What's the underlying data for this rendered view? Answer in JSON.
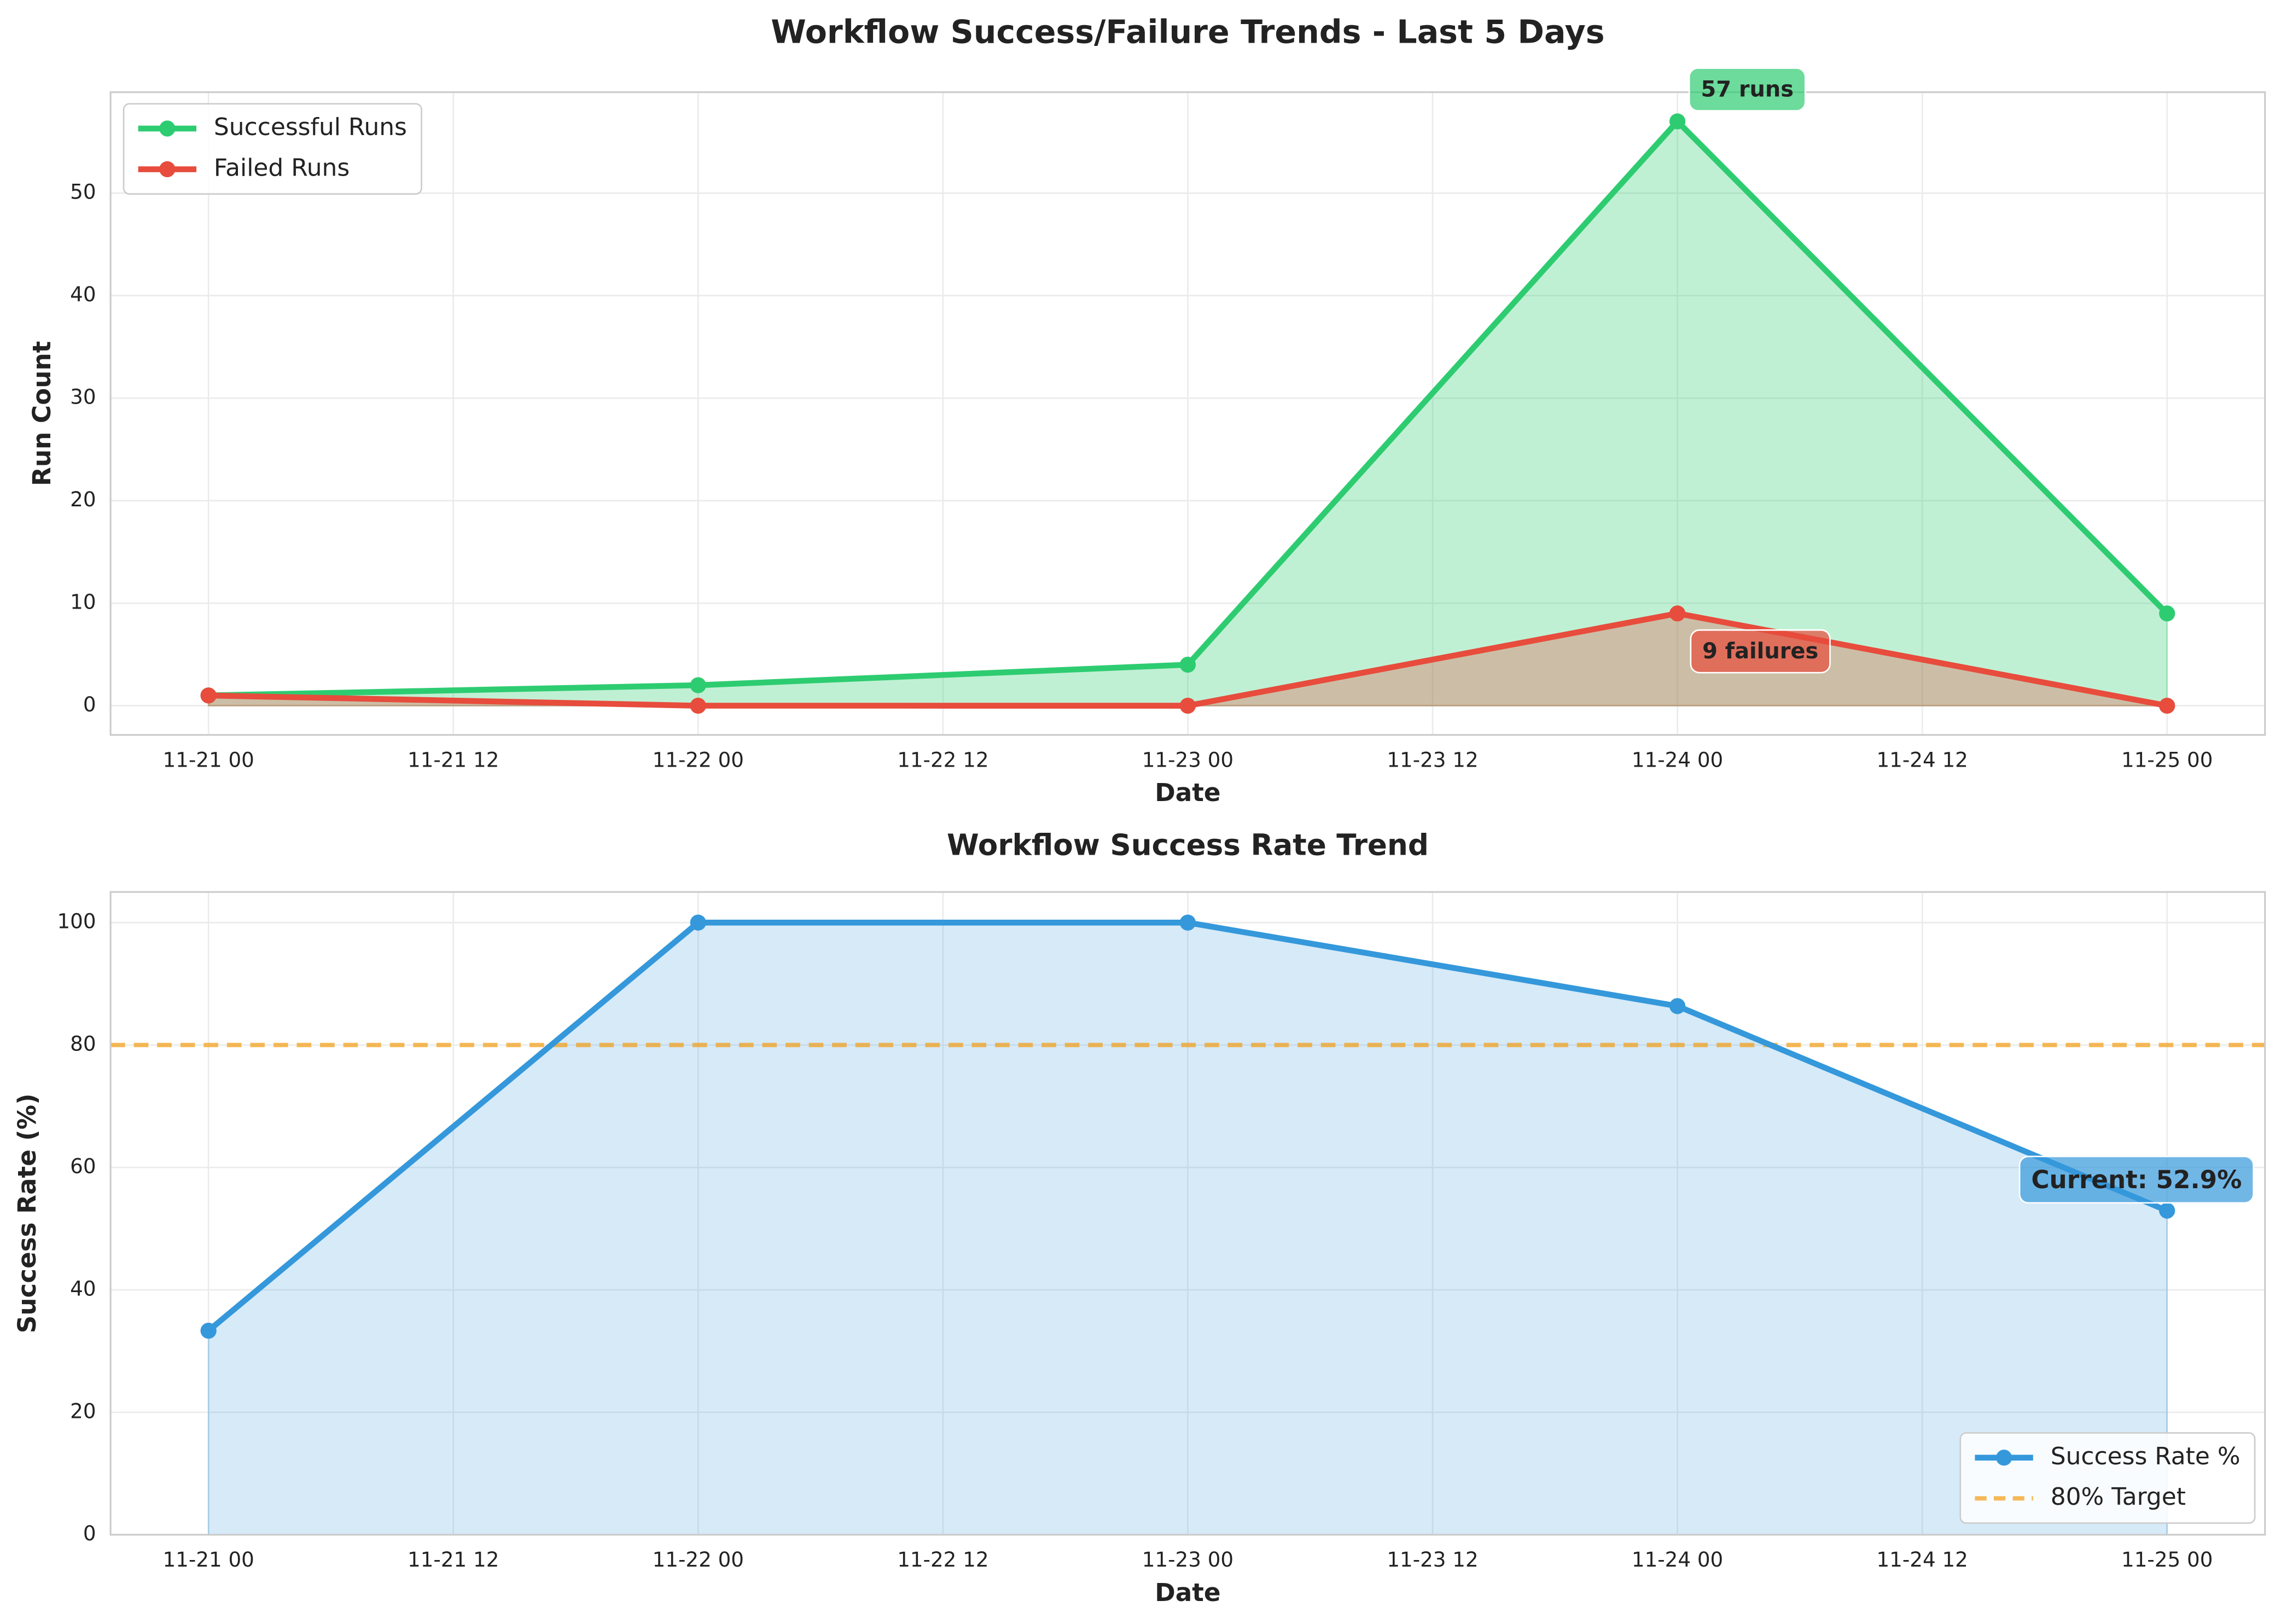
{
  "chart_data": [
    {
      "type": "line",
      "title": "Workflow Success/Failure Trends - Last 5 Days",
      "xlabel": "Date",
      "ylabel": "Run Count",
      "x": [
        "11-21 00",
        "11-22 00",
        "11-23 00",
        "11-24 00",
        "11-25 00"
      ],
      "series": [
        {
          "name": "Successful Runs",
          "color": "#2ecc71",
          "values": [
            1,
            2,
            4,
            57,
            9
          ]
        },
        {
          "name": "Failed Runs",
          "color": "#e74c3c",
          "values": [
            1,
            0,
            0,
            9,
            0
          ]
        }
      ],
      "xlim": [
        "11-20 19.2",
        "11-25 04.8"
      ],
      "xticks": [
        "11-21 00",
        "11-21 12",
        "11-22 00",
        "11-22 12",
        "11-23 00",
        "11-23 12",
        "11-24 00",
        "11-24 12",
        "11-25 00"
      ],
      "ylim": [
        -2.85,
        59.85
      ],
      "yticks": [
        0,
        10,
        20,
        30,
        40,
        50
      ],
      "grid": true,
      "fill": true,
      "legend": "upper left",
      "annotations": [
        "57 runs",
        "9 failures"
      ]
    },
    {
      "type": "line",
      "title": "Workflow Success Rate Trend",
      "xlabel": "Date",
      "ylabel": "Success Rate (%)",
      "x": [
        "11-21 00",
        "11-22 00",
        "11-23 00",
        "11-24 00",
        "11-25 00"
      ],
      "series": [
        {
          "name": "Success Rate %",
          "color": "#3498db",
          "values": [
            33.33,
            100,
            100,
            86.36,
            52.94
          ]
        }
      ],
      "reference_lines": [
        {
          "name": "80% Target",
          "value": 80,
          "color": "#f39c12"
        }
      ],
      "xlim": [
        "11-20 19.2",
        "11-25 04.8"
      ],
      "xticks": [
        "11-21 00",
        "11-21 12",
        "11-22 00",
        "11-22 12",
        "11-23 00",
        "11-23 12",
        "11-24 00",
        "11-24 12",
        "11-25 00"
      ],
      "ylim": [
        0,
        105
      ],
      "yticks": [
        0,
        20,
        40,
        60,
        80,
        100
      ],
      "grid": true,
      "fill": true,
      "legend": "lower right",
      "annotations": [
        "Current: 52.9%"
      ]
    }
  ]
}
